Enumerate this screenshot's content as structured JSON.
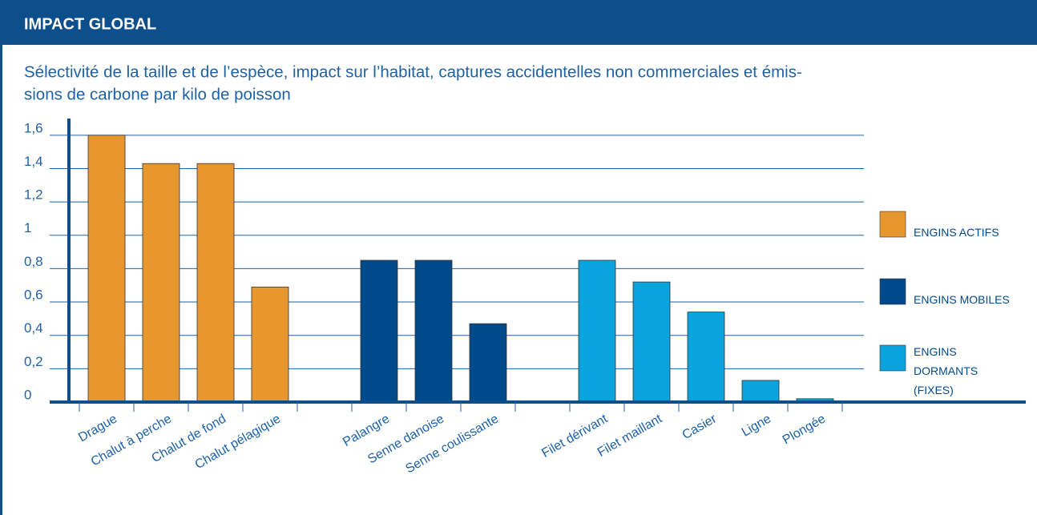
{
  "chart_data": {
    "type": "bar",
    "title": "IMPACT GLOBAL",
    "subtitle": [
      "Sélectivité de la taille et de l’espèce, impact sur l’habitat, captures accidentelles non commerciales et émis-",
      "sions de carbone par kilo de poisson"
    ],
    "categories": [
      "Drague",
      "Chalut à perche",
      "Chalut de fond",
      "Chalut pélagique",
      null,
      "Palangre",
      "Senne danoise",
      "Senne coulissante",
      null,
      "Filet dérivant",
      "Filet maillant",
      "Casier",
      "Ligne",
      "Plongée"
    ],
    "series": [
      {
        "name": "ENGINS ACTIFS",
        "color": "#e8962e",
        "values": [
          1.6,
          1.43,
          1.43,
          0.69,
          null,
          null,
          null,
          null,
          null,
          null,
          null,
          null,
          null,
          null
        ]
      },
      {
        "name": "ENGINS MOBILES",
        "color": "#004a8c",
        "values": [
          null,
          null,
          null,
          null,
          null,
          0.85,
          0.85,
          0.47,
          null,
          null,
          null,
          null,
          null,
          null
        ]
      },
      {
        "name": "ENGINS DORMANTS (FIXES)",
        "color": "#0ba3dd",
        "values": [
          null,
          null,
          null,
          null,
          null,
          null,
          null,
          null,
          null,
          0.85,
          0.72,
          0.54,
          0.13,
          0.02
        ]
      }
    ],
    "ylim": [
      0,
      1.7
    ],
    "yticks": [
      0,
      {
        "value": 0.2,
        "label": "0,2"
      },
      {
        "value": 0.4,
        "label": "0,4"
      },
      {
        "value": 0.6,
        "label": "0,6"
      },
      {
        "value": 0.8,
        "label": "0,8"
      },
      1,
      {
        "value": 1.2,
        "label": "1,2"
      },
      {
        "value": 1.4,
        "label": "1,4"
      },
      {
        "value": 1.6,
        "label": "1,6"
      }
    ],
    "grid": true
  }
}
